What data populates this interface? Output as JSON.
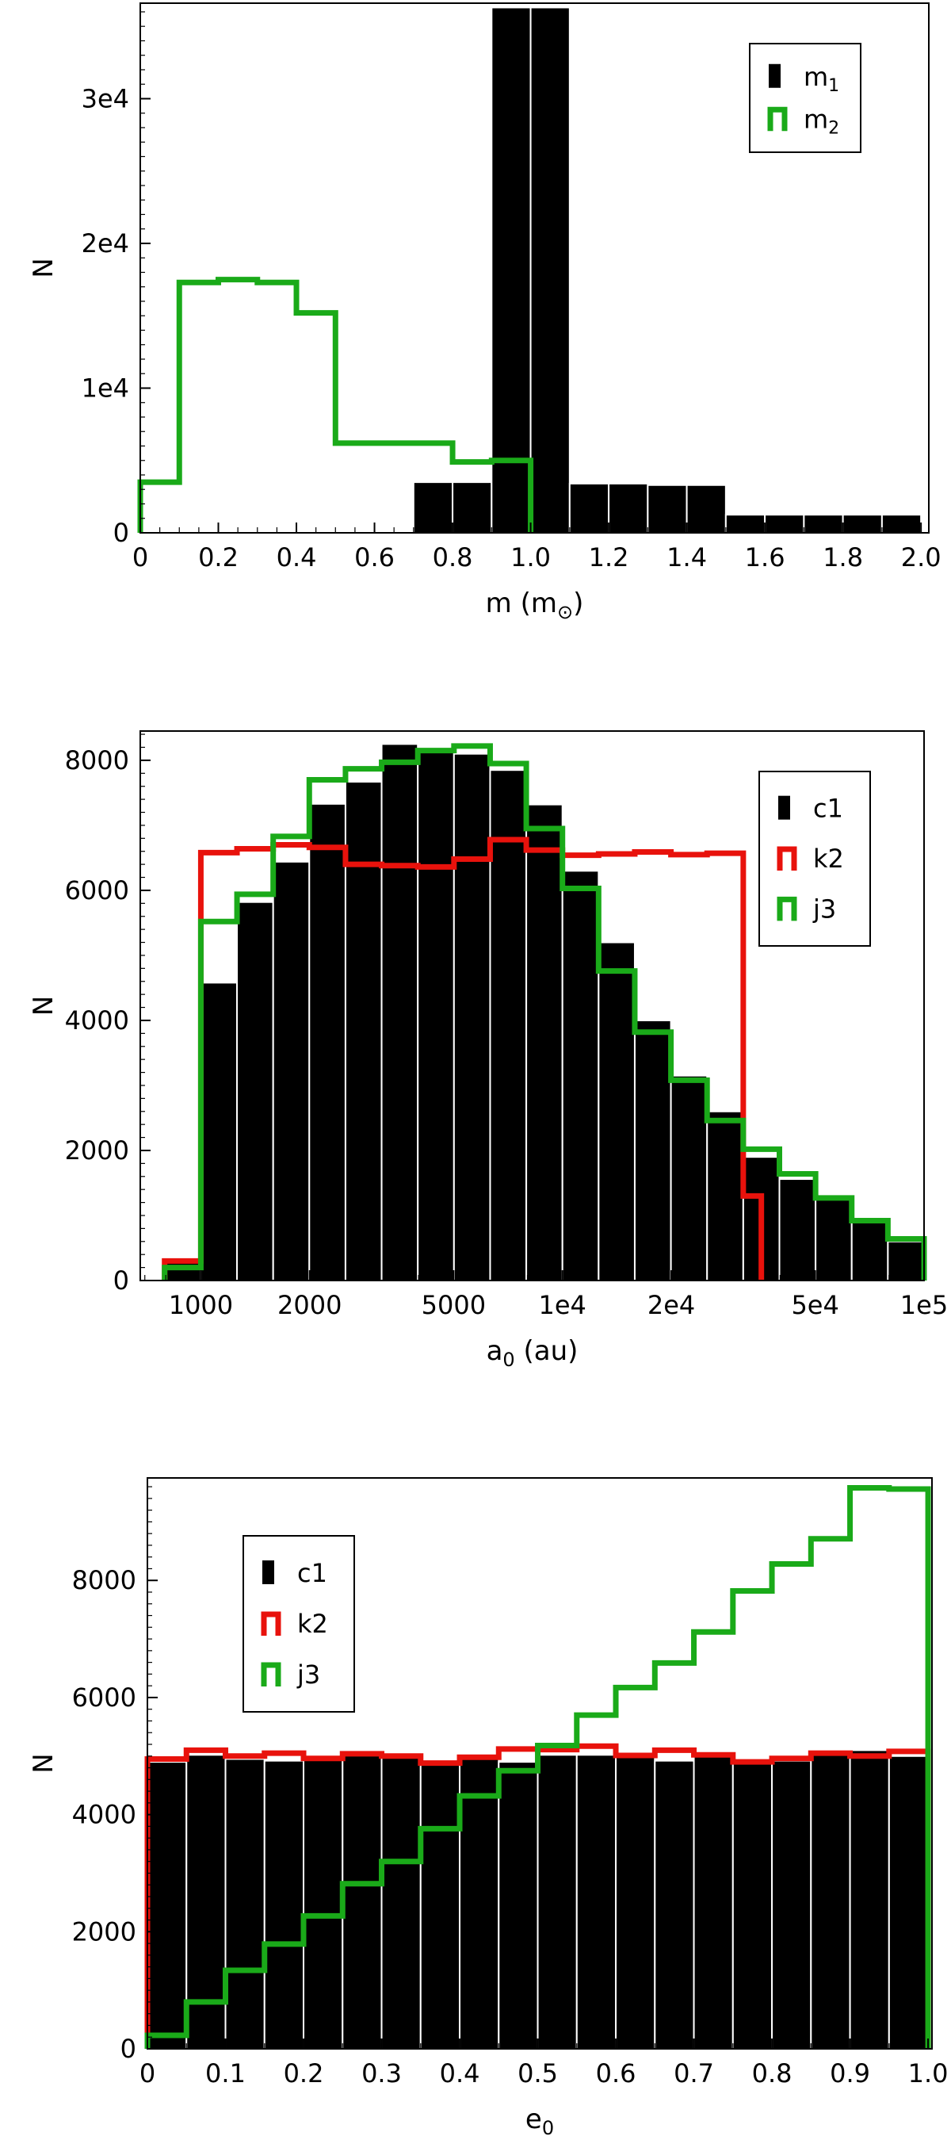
{
  "colors": {
    "black": "#000000",
    "red": "#e8120c",
    "green": "#1aaa19",
    "bar_edge": "#ffffff"
  },
  "chart_data": [
    {
      "type": "bar",
      "x_scale": "linear",
      "xlabel": "m (m",
      "xlabel_sub": "⊙",
      "xlabel_close": ")",
      "ylabel": "N",
      "xlim": [
        0,
        2.02
      ],
      "ylim": [
        0,
        36600
      ],
      "xticks": [
        {
          "v": 0,
          "l": "0"
        },
        {
          "v": 0.2,
          "l": "0.2"
        },
        {
          "v": 0.4,
          "l": "0.4"
        },
        {
          "v": 0.6,
          "l": "0.6"
        },
        {
          "v": 0.8,
          "l": "0.8"
        },
        {
          "v": 1.0,
          "l": "1.0"
        },
        {
          "v": 1.2,
          "l": "1.2"
        },
        {
          "v": 1.4,
          "l": "1.4"
        },
        {
          "v": 1.6,
          "l": "1.6"
        },
        {
          "v": 1.8,
          "l": "1.8"
        },
        {
          "v": 2.0,
          "l": "2.0"
        }
      ],
      "yticks": [
        {
          "v": 0,
          "l": "0"
        },
        {
          "v": 10000,
          "l": "1e4"
        },
        {
          "v": 20000,
          "l": "2e4"
        },
        {
          "v": 30000,
          "l": "3e4"
        }
      ],
      "legend": {
        "position": "top-right",
        "entries": [
          {
            "label": "m",
            "sub": "1",
            "style": "bar",
            "color": "#000000"
          },
          {
            "label": "m",
            "sub": "2",
            "style": "step",
            "color": "#1aaa19"
          }
        ]
      },
      "bars": {
        "edges": [
          0.7,
          0.8,
          0.9,
          1.0,
          1.1,
          1.2,
          1.3,
          1.4,
          1.5,
          1.6,
          1.7,
          1.8,
          1.9,
          2.0
        ],
        "values": [
          3500,
          3500,
          36300,
          36300,
          3400,
          3400,
          3300,
          3300,
          1250,
          1250,
          1250,
          1250,
          1250
        ],
        "color": "#000000"
      },
      "steps": [
        {
          "color": "#1aaa19",
          "edges": [
            0,
            0.1,
            0.2,
            0.3,
            0.4,
            0.5,
            0.6,
            0.7,
            0.8,
            0.9,
            1.0
          ],
          "values": [
            3500,
            17300,
            17500,
            17300,
            15200,
            6200,
            6200,
            6200,
            4900,
            5000
          ]
        }
      ]
    },
    {
      "type": "bar",
      "x_scale": "log",
      "xlabel": "a",
      "xlabel_sub": "0",
      "xlabel_close": " (au)",
      "ylabel": "N",
      "xlim": [
        680,
        100000
      ],
      "ylim": [
        0,
        8450
      ],
      "xticks": [
        {
          "v": 1000,
          "l": "1000"
        },
        {
          "v": 2000,
          "l": "2000"
        },
        {
          "v": 5000,
          "l": "5000"
        },
        {
          "v": 10000,
          "l": "1e4"
        },
        {
          "v": 20000,
          "l": "2e4"
        },
        {
          "v": 50000,
          "l": "5e4"
        },
        {
          "v": 100000,
          "l": "1e5"
        }
      ],
      "yticks": [
        {
          "v": 0,
          "l": "0"
        },
        {
          "v": 2000,
          "l": "2000"
        },
        {
          "v": 4000,
          "l": "4000"
        },
        {
          "v": 6000,
          "l": "6000"
        },
        {
          "v": 8000,
          "l": "8000"
        }
      ],
      "legend": {
        "position": "top-right",
        "entries": [
          {
            "label": "c1",
            "style": "bar",
            "color": "#000000"
          },
          {
            "label": "k2",
            "style": "step",
            "color": "#e8120c"
          },
          {
            "label": "j3",
            "style": "step",
            "color": "#1aaa19"
          }
        ]
      },
      "bars": {
        "edges": [
          794,
          1000,
          1259,
          1585,
          1995,
          2512,
          3162,
          3981,
          5012,
          6310,
          7943,
          10000,
          12589,
          15849,
          19953,
          25119,
          31623,
          39811,
          50119,
          63096,
          79433,
          100000
        ],
        "values": [
          280,
          4580,
          5820,
          6440,
          7330,
          7670,
          8250,
          8150,
          8100,
          7850,
          7320,
          6300,
          5200,
          4000,
          3150,
          2600,
          1900,
          1560,
          1250,
          930,
          600
        ],
        "color": "#000000"
      },
      "steps": [
        {
          "color": "#e8120c",
          "edges": [
            794,
            1000,
            1259,
            1585,
            1995,
            2512,
            3162,
            3981,
            5012,
            6310,
            7943,
            10000,
            12589,
            15849,
            19953,
            25119,
            31623,
            35481
          ],
          "values": [
            300,
            6580,
            6640,
            6700,
            6660,
            6400,
            6380,
            6360,
            6480,
            6780,
            6620,
            6540,
            6560,
            6590,
            6550,
            6570,
            1300
          ]
        },
        {
          "color": "#1aaa19",
          "edges": [
            794,
            1000,
            1259,
            1585,
            1995,
            2512,
            3162,
            3981,
            5012,
            6310,
            7943,
            10000,
            12589,
            15849,
            19953,
            25119,
            31623,
            39811,
            50119,
            63096,
            79433,
            100000
          ],
          "values": [
            200,
            5520,
            5940,
            6830,
            7700,
            7870,
            7970,
            8150,
            8220,
            7950,
            6950,
            6030,
            4760,
            3820,
            3080,
            2460,
            2020,
            1640,
            1270,
            920,
            640
          ]
        }
      ]
    },
    {
      "type": "bar",
      "x_scale": "linear",
      "xlabel": "e",
      "xlabel_sub": "0",
      "xlabel_close": "",
      "ylabel": "N",
      "xlim": [
        0,
        1.005
      ],
      "ylim": [
        0,
        9750
      ],
      "xticks": [
        {
          "v": 0,
          "l": "0"
        },
        {
          "v": 0.1,
          "l": "0.1"
        },
        {
          "v": 0.2,
          "l": "0.2"
        },
        {
          "v": 0.3,
          "l": "0.3"
        },
        {
          "v": 0.4,
          "l": "0.4"
        },
        {
          "v": 0.5,
          "l": "0.5"
        },
        {
          "v": 0.6,
          "l": "0.6"
        },
        {
          "v": 0.7,
          "l": "0.7"
        },
        {
          "v": 0.8,
          "l": "0.8"
        },
        {
          "v": 0.9,
          "l": "0.9"
        },
        {
          "v": 1.0,
          "l": "1.0"
        }
      ],
      "yticks": [
        {
          "v": 0,
          "l": "0"
        },
        {
          "v": 2000,
          "l": "2000"
        },
        {
          "v": 4000,
          "l": "4000"
        },
        {
          "v": 6000,
          "l": "6000"
        },
        {
          "v": 8000,
          "l": "8000"
        }
      ],
      "legend": {
        "position": "top-left",
        "entries": [
          {
            "label": "c1",
            "style": "bar",
            "color": "#000000"
          },
          {
            "label": "k2",
            "style": "step",
            "color": "#e8120c"
          },
          {
            "label": "j3",
            "style": "step",
            "color": "#1aaa19"
          }
        ]
      },
      "bars": {
        "edges": [
          0,
          0.05,
          0.1,
          0.15,
          0.2,
          0.25,
          0.3,
          0.35,
          0.4,
          0.45,
          0.5,
          0.55,
          0.6,
          0.65,
          0.7,
          0.75,
          0.8,
          0.85,
          0.9,
          0.95,
          1.0
        ],
        "values": [
          4900,
          5020,
          4950,
          4920,
          4950,
          5010,
          4980,
          4900,
          5020,
          4900,
          5020,
          5020,
          5010,
          4920,
          5030,
          4910,
          4920,
          5060,
          5100,
          5000
        ],
        "color": "#000000"
      },
      "steps": [
        {
          "color": "#e8120c",
          "edges": [
            0,
            0.05,
            0.1,
            0.15,
            0.2,
            0.25,
            0.3,
            0.35,
            0.4,
            0.45,
            0.5,
            0.55,
            0.6,
            0.65,
            0.7,
            0.75,
            0.8,
            0.85,
            0.9,
            0.95,
            1.0
          ],
          "values": [
            4950,
            5100,
            5000,
            5050,
            4960,
            5040,
            5000,
            4880,
            4980,
            5120,
            5110,
            5170,
            5010,
            5100,
            5020,
            4900,
            4960,
            5050,
            5000,
            5080
          ]
        },
        {
          "color": "#1aaa19",
          "edges": [
            0,
            0.05,
            0.1,
            0.15,
            0.2,
            0.25,
            0.3,
            0.35,
            0.4,
            0.45,
            0.5,
            0.55,
            0.6,
            0.65,
            0.7,
            0.75,
            0.8,
            0.85,
            0.9,
            0.95,
            1.0
          ],
          "values": [
            230,
            800,
            1340,
            1790,
            2270,
            2820,
            3200,
            3760,
            4320,
            4750,
            5180,
            5700,
            6170,
            6590,
            7120,
            7820,
            8280,
            8710,
            9580,
            9560
          ]
        }
      ]
    }
  ]
}
